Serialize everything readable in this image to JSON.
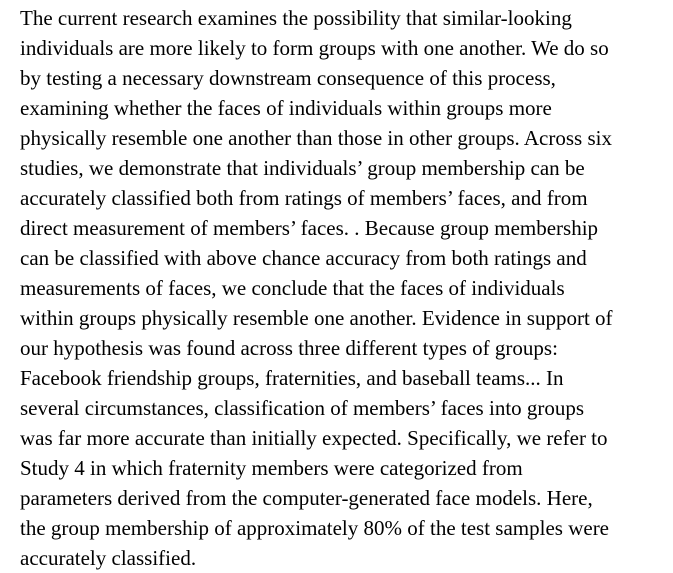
{
  "document": {
    "lines": [
      "The current research examines the possibility that similar-looking",
      "individuals are more likely to form groups with one another. We do so",
      "by testing a necessary downstream consequence of this process,",
      "examining whether the faces of individuals within groups more",
      "physically resemble one another than those in other groups. Across six",
      "studies, we demonstrate that individuals’ group membership can be",
      "accurately classified both from ratings of members’ faces, and from",
      "direct measurement of members’ faces. . Because group membership",
      "can be classified with above chance accuracy from both ratings and",
      "measurements of faces, we conclude that the faces of individuals",
      "within groups physically resemble one another. Evidence in support of",
      "our hypothesis was found across three different types of groups:",
      "Facebook friendship groups, fraternities, and baseball teams... In",
      "several circumstances, classification of members’ faces into groups",
      "was far more accurate than initially expected. Specifically, we refer to",
      "Study 4 in which fraternity members were categorized from",
      "parameters derived from the computer-generated face models. Here,",
      "the group membership of approximately 80% of the test samples were",
      "accurately classified."
    ]
  }
}
